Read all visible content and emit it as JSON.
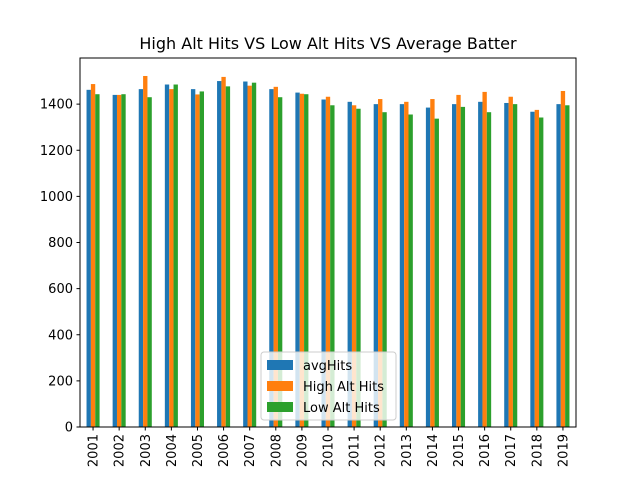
{
  "chart_data": {
    "type": "bar",
    "title": "High Alt Hits VS Low Alt Hits VS Average Batter",
    "xlabel": "",
    "ylabel": "",
    "ylim": [
      0,
      1600
    ],
    "yticks": [
      0,
      200,
      400,
      600,
      800,
      1000,
      1200,
      1400
    ],
    "grid": false,
    "legend_position": "lower center",
    "categories": [
      "2001",
      "2002",
      "2003",
      "2004",
      "2005",
      "2006",
      "2007",
      "2008",
      "2009",
      "2010",
      "2011",
      "2012",
      "2013",
      "2014",
      "2015",
      "2016",
      "2017",
      "2018",
      "2019"
    ],
    "series": [
      {
        "name": "avgHits",
        "color": "#1f77b4",
        "values": [
          1462,
          1440,
          1465,
          1485,
          1465,
          1500,
          1498,
          1465,
          1450,
          1420,
          1410,
          1400,
          1400,
          1385,
          1400,
          1410,
          1405,
          1367,
          1400
        ]
      },
      {
        "name": "High Alt Hits",
        "color": "#ff7f0e",
        "values": [
          1487,
          1440,
          1522,
          1465,
          1442,
          1518,
          1480,
          1475,
          1445,
          1432,
          1395,
          1422,
          1410,
          1422,
          1440,
          1453,
          1432,
          1375,
          1457
        ]
      },
      {
        "name": "Low Alt Hits",
        "color": "#2ca02c",
        "values": [
          1443,
          1443,
          1430,
          1485,
          1455,
          1477,
          1493,
          1430,
          1443,
          1395,
          1380,
          1365,
          1355,
          1337,
          1388,
          1365,
          1400,
          1342,
          1395
        ]
      }
    ]
  }
}
